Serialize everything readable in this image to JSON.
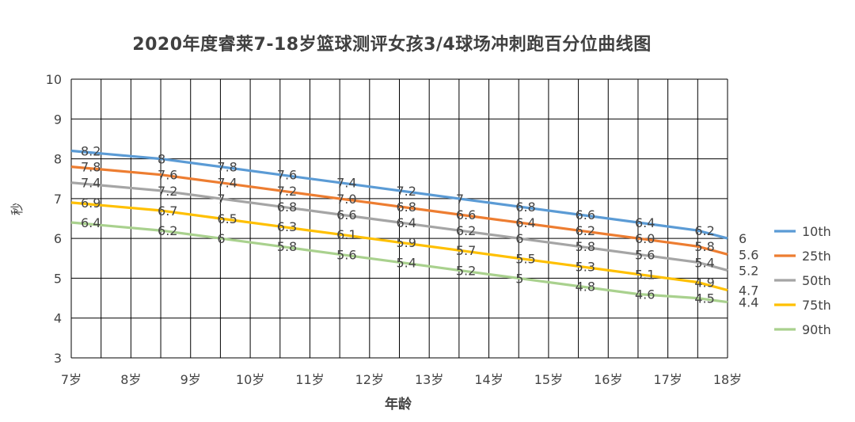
{
  "chart_data": {
    "type": "line",
    "title": "2020年度睿莱7-18岁篮球测评女孩3/4球场冲刺跑百分位曲线图",
    "xlabel": "年龄",
    "ylabel": "秒",
    "ylim": [
      3,
      10
    ],
    "yticks": [
      "3",
      "4",
      "5",
      "6",
      "7",
      "8",
      "9",
      "10"
    ],
    "grid": true,
    "legend_position": "right",
    "x_tick_labels": [
      "7岁",
      "8岁",
      "9岁",
      "10岁",
      "11岁",
      "12岁",
      "13岁",
      "14岁",
      "15岁",
      "16岁",
      "17岁",
      "18岁"
    ],
    "x": [
      7,
      8,
      9,
      10,
      11,
      12,
      13,
      14,
      15,
      16,
      17,
      18
    ],
    "series": [
      {
        "name": "10th",
        "color": "#5B9BD5",
        "values": [
          8.2,
          8,
          7.8,
          7.6,
          7.4,
          7.2,
          7,
          6.8,
          6.6,
          6.4,
          6.2,
          6
        ],
        "labels": [
          "8.2",
          "8",
          "7.8",
          "7.6",
          "7.4",
          "7.2",
          "7",
          "6.8",
          "6.6",
          "6.4",
          "6.2",
          "6"
        ]
      },
      {
        "name": "25th",
        "color": "#ED7D31",
        "values": [
          7.8,
          7.6,
          7.4,
          7.2,
          7.0,
          6.8,
          6.6,
          6.4,
          6.2,
          6.0,
          5.8,
          5.6
        ],
        "labels": [
          "7.8",
          "7.6",
          "7.4",
          "7.2",
          "7.0",
          "6.8",
          "6.6",
          "6.4",
          "6.2",
          "6.0",
          "5.8",
          "5.6"
        ]
      },
      {
        "name": "50th",
        "color": "#A5A5A5",
        "values": [
          7.4,
          7.2,
          7,
          6.8,
          6.6,
          6.4,
          6.2,
          6,
          5.8,
          5.6,
          5.4,
          5.2
        ],
        "labels": [
          "7.4",
          "7.2",
          "7",
          "6.8",
          "6.6",
          "6.4",
          "6.2",
          "6",
          "5.8",
          "5.6",
          "5.4",
          "5.2"
        ]
      },
      {
        "name": "75th",
        "color": "#FFC000",
        "values": [
          6.9,
          6.7,
          6.5,
          6.3,
          6.1,
          5.9,
          5.7,
          5.5,
          5.3,
          5.1,
          4.9,
          4.7
        ],
        "labels": [
          "6.9",
          "6.7",
          "6.5",
          "6.3",
          "6.1",
          "5.9",
          "5.7",
          "5.5",
          "5.3",
          "5.1",
          "4.9",
          "4.7"
        ]
      },
      {
        "name": "90th",
        "color": "#A9D18E",
        "values": [
          6.4,
          6.2,
          6,
          5.8,
          5.6,
          5.4,
          5.2,
          5,
          4.8,
          4.6,
          4.5,
          4.4
        ],
        "labels": [
          "6.4",
          "6.2",
          "6",
          "5.8",
          "5.6",
          "5.4",
          "5.2",
          "5",
          "4.8",
          "4.6",
          "4.5",
          "4.4"
        ]
      }
    ]
  }
}
